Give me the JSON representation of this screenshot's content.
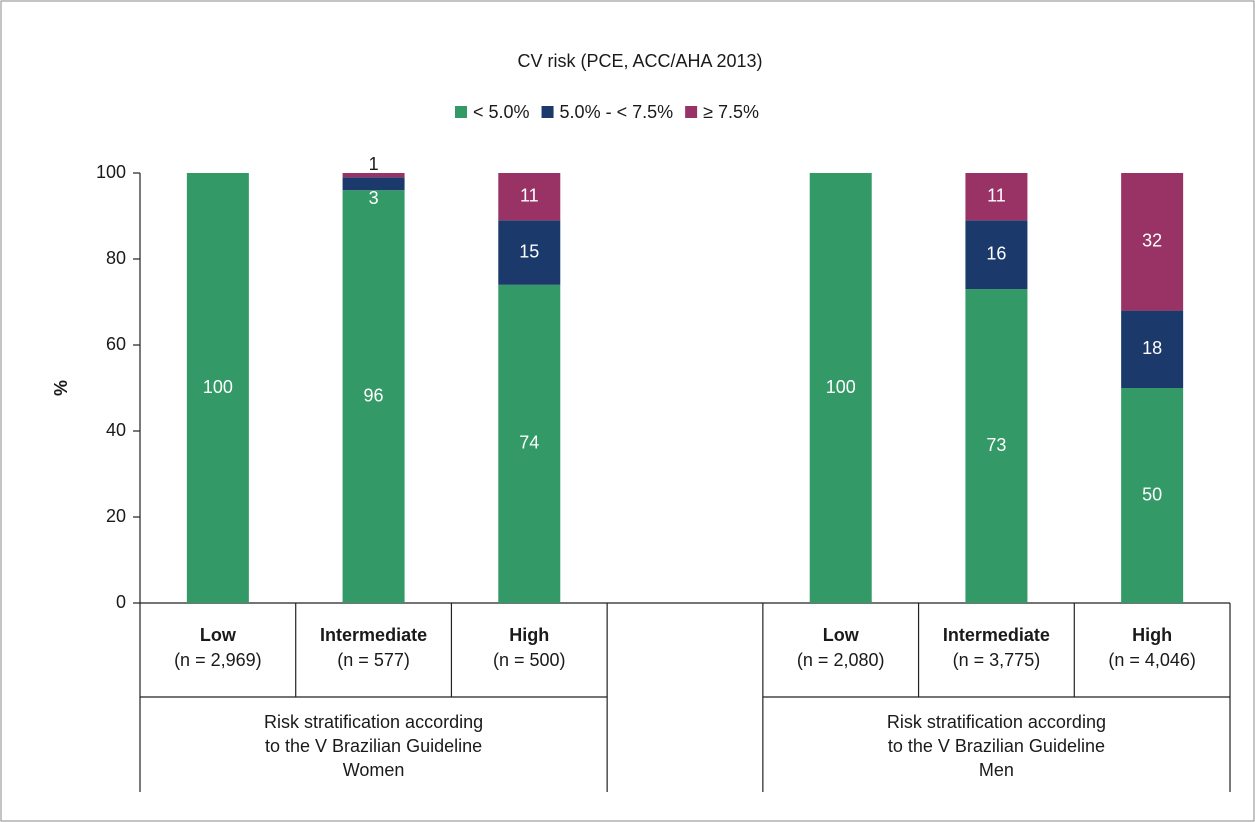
{
  "chart_data": {
    "type": "stacked_bar",
    "title": "CV risk (PCE, ACC/AHA 2013)",
    "y_label": "%",
    "categories": [
      "Low",
      "Intermediate",
      "High",
      null,
      "Low",
      "Intermediate",
      "High"
    ],
    "category_sublabels": [
      "(n = 2,969)",
      "(n = 577)",
      "(n = 500)",
      null,
      "(n = 2,080)",
      "(n = 3,775)",
      "(n = 4,046)"
    ],
    "groups": [
      {
        "lines": [
          "Risk stratification according",
          "to the V Brazilian Guideline",
          "Women"
        ],
        "span": [
          0,
          2
        ]
      },
      {
        "lines": [
          "Risk stratification according",
          "to the V Brazilian Guideline",
          "Men"
        ],
        "span": [
          4,
          6
        ]
      }
    ],
    "series": [
      {
        "name": "< 5.0%",
        "color": "#339966",
        "values": [
          100,
          96,
          74,
          null,
          100,
          73,
          50
        ]
      },
      {
        "name": "5.0% - < 7.5%",
        "color": "#1b3a6b",
        "values": [
          null,
          3,
          15,
          null,
          null,
          16,
          18
        ]
      },
      {
        "name": "≥ 7.5%",
        "color": "#993366",
        "values": [
          null,
          1,
          11,
          null,
          null,
          11,
          32
        ]
      }
    ],
    "ylim": [
      0,
      100
    ],
    "yticks": [
      0,
      20,
      40,
      60,
      80,
      100
    ],
    "legend": "top"
  }
}
